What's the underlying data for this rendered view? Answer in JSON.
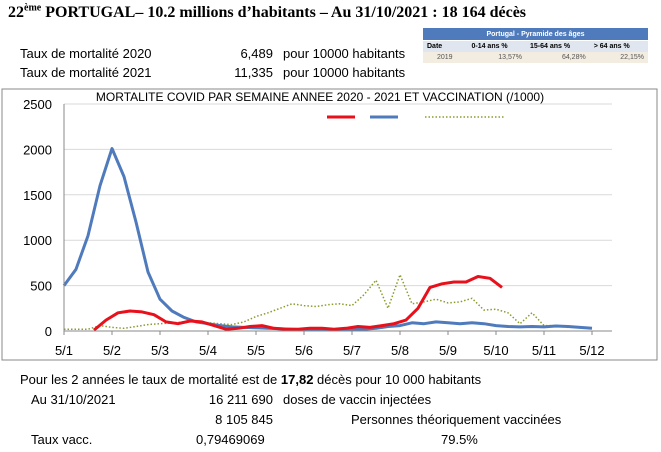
{
  "header": {
    "rank": "22",
    "rank_sup": "ème",
    "title_rest": " PORTUGAL– 10.2 millions d’habitants – Au 31/10/2021 : 18 164 décès"
  },
  "mortality": {
    "row2020": {
      "label": "Taux de mortalité 2020",
      "value": "6,489",
      "unit": "pour 10000 habitants"
    },
    "row2021": {
      "label": "Taux de mortalité 2021",
      "value": "11,335",
      "unit": "pour 10000 habitants"
    }
  },
  "pyramid": {
    "title": "Portugal - Pyramide des âges",
    "headers": [
      "Date",
      "0-14 ans %",
      "15-64 ans %",
      "> 64 ans %"
    ],
    "row": [
      "2019",
      "13,57%",
      "64,28%",
      "22,15%"
    ]
  },
  "chart_data": {
    "type": "line",
    "title": "MORTALITE COVID PAR SEMAINE ANNEE 2020 - 2021 ET VACCINATION (/1000)",
    "xlabel": "",
    "ylabel": "",
    "ylim": [
      0,
      2500
    ],
    "yticks": [
      "0",
      "500",
      "1000",
      "1500",
      "2000",
      "2500"
    ],
    "xticks": [
      "5/1",
      "5/2",
      "5/3",
      "5/4",
      "5/5",
      "5/6",
      "5/7",
      "5/8",
      "5/9",
      "5/10",
      "5/11",
      "5/12"
    ],
    "grid": true,
    "legend": "top-right",
    "series": [
      {
        "color": "#e8101b",
        "style": "solid",
        "x_start": 2.5,
        "values": [
          10,
          120,
          200,
          220,
          210,
          180,
          100,
          80,
          110,
          100,
          60,
          20,
          30,
          50,
          60,
          30,
          20,
          20,
          30,
          30,
          20,
          30,
          50,
          40,
          60,
          80,
          120,
          250,
          480,
          520,
          540,
          540,
          600,
          580,
          480
        ]
      },
      {
        "color": "#4f7bbd",
        "style": "solid",
        "x_start": 0,
        "values": [
          500,
          680,
          1050,
          1600,
          2010,
          1700,
          1200,
          650,
          350,
          220,
          150,
          100,
          80,
          60,
          45,
          40,
          35,
          30,
          25,
          20,
          15,
          15,
          12,
          12,
          15,
          20,
          30,
          50,
          60,
          90,
          80,
          100,
          90,
          80,
          90,
          80,
          60,
          50,
          45,
          50,
          45,
          55,
          50,
          40,
          30
        ]
      },
      {
        "color": "#8c9b2c",
        "style": "dotted",
        "x_start": 0,
        "values": [
          20,
          20,
          20,
          60,
          40,
          30,
          50,
          70,
          80,
          90,
          100,
          110,
          90,
          80,
          70,
          100,
          160,
          200,
          250,
          300,
          280,
          270,
          290,
          300,
          280,
          400,
          560,
          250,
          620,
          300,
          320,
          350,
          310,
          320,
          360,
          230,
          240,
          200,
          80,
          200,
          60,
          60,
          40
        ]
      }
    ]
  },
  "bottom": {
    "line1_pre": "Pour les 2 années le taux de mortalité est de ",
    "line1_bold": "17,82",
    "line1_post": " décès pour 10 000 habitants",
    "date": "Au 31/10/2021",
    "doses_value": "16 211 690",
    "doses_label": "doses de vaccin injectées",
    "vaccinated_value": "8 105 845",
    "vaccinated_label": "Personnes théoriquement vaccinées",
    "rate_label": "Taux vacc.",
    "rate_value": "0,79469069",
    "rate_percent": "79.5%"
  }
}
